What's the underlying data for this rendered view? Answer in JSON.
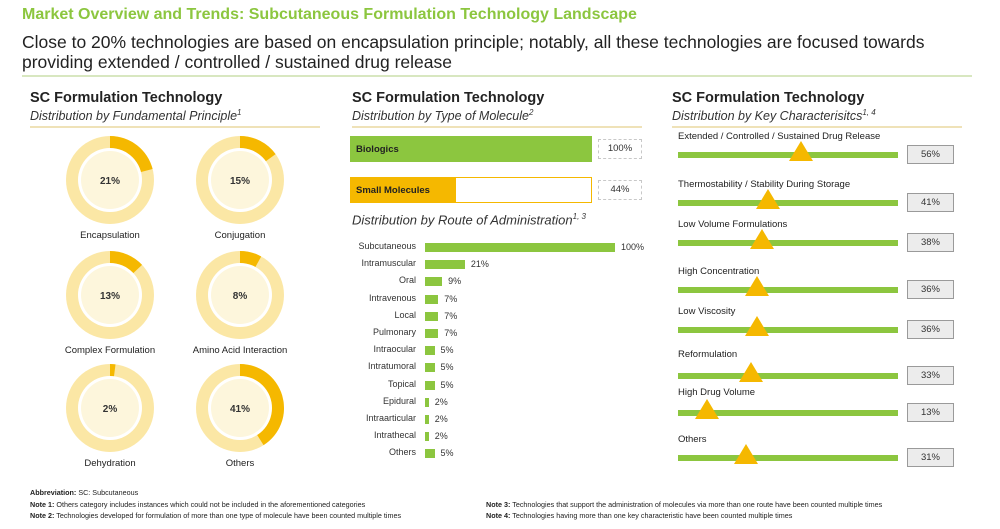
{
  "header": {
    "title": "Market Overview and Trends: Subcutaneous Formulation Technology Landscape",
    "subtitle": "Close to 20% technologies are based on encapsulation principle; notably, all these technologies are focused towards providing extended / controlled / sustained drug release"
  },
  "panels": {
    "principle": {
      "title": "SC Formulation Technology",
      "subtitle": "Distribution by Fundamental Principle",
      "sup": "1"
    },
    "molecule": {
      "title": "SC Formulation Technology",
      "subtitle": "Distribution by Type of Molecule",
      "sup": "2"
    },
    "route": {
      "title": "Distribution by Route of Administration",
      "sup": "1, 3"
    },
    "characteristics": {
      "title": "SC Formulation Technology",
      "subtitle": "Distribution by Key Characterisitcs",
      "sup": "1, 4"
    }
  },
  "colors": {
    "green": "#8cc63f",
    "yellow": "#f5b800",
    "ring": "#fbe7a5",
    "ring_center": "#fdf6dc",
    "header_green": "#8cc63f"
  },
  "chart_data": [
    {
      "type": "pie",
      "id": "principle",
      "title": "SC Formulation Technology",
      "subtitle": "Distribution by Fundamental Principle",
      "slices": [
        {
          "label": "Encapsulation",
          "value": 21,
          "text": "21%"
        },
        {
          "label": "Conjugation",
          "value": 15,
          "text": "15%"
        },
        {
          "label": "Complex Formulation",
          "value": 13,
          "text": "13%"
        },
        {
          "label": "Amino Acid Interaction",
          "value": 8,
          "text": "8%"
        },
        {
          "label": "Dehydration",
          "value": 2,
          "text": "2%"
        },
        {
          "label": "Others",
          "value": 41,
          "text": "41%"
        }
      ]
    },
    {
      "type": "bar",
      "id": "molecule",
      "title": "SC Formulation Technology",
      "subtitle": "Distribution by Type of Molecule",
      "categories": [
        "Biologics",
        "Small Molecules"
      ],
      "values": [
        100,
        44
      ],
      "value_text": [
        "100%",
        "44%"
      ],
      "colors": [
        "#8cc63f",
        "#f5b800"
      ],
      "xlim": [
        0,
        100
      ]
    },
    {
      "type": "bar",
      "id": "route",
      "title": "Distribution by Route of Administration",
      "categories": [
        "Subcutaneous",
        "Intramuscular",
        "Oral",
        "Intravenous",
        "Local",
        "Pulmonary",
        "Intraocular",
        "Intratumoral",
        "Topical",
        "Epidural",
        "Intraarticular",
        "Intrathecal",
        "Others"
      ],
      "values": [
        100,
        21,
        9,
        7,
        7,
        7,
        5,
        5,
        5,
        2,
        2,
        2,
        5
      ],
      "value_text": [
        "100%",
        "21%",
        "9%",
        "7%",
        "7%",
        "7%",
        "5%",
        "5%",
        "5%",
        "2%",
        "2%",
        "2%",
        "5%"
      ],
      "xlim": [
        0,
        100
      ]
    },
    {
      "type": "bar",
      "id": "characteristics",
      "title": "SC Formulation Technology",
      "subtitle": "Distribution by Key Characterisitcs",
      "categories": [
        "Extended / Controlled / Sustained Drug Release",
        "Thermostability / Stability During Storage",
        "Low Volume Formulations",
        "High Concentration",
        "Low Viscosity",
        "Reformulation",
        "High Drug Volume",
        "Others"
      ],
      "values": [
        56,
        41,
        38,
        36,
        36,
        33,
        13,
        31
      ],
      "value_text": [
        "56%",
        "41%",
        "38%",
        "36%",
        "36%",
        "33%",
        "13%",
        "31%"
      ],
      "xlim": [
        0,
        100
      ]
    }
  ],
  "footnotes": {
    "abbrev_label": "Abbreviation:",
    "abbrev_text": " SC: Subcutaneous",
    "note1_label": "Note 1:",
    "note1_text": " Others category includes instances which could not be included in the aforementioned categories",
    "note2_label": "Note 2:",
    "note2_text": " Technologies developed for formulation of more than one type of molecule have been counted multiple times",
    "note3_label": "Note 3:",
    "note3_text": " Technologies that support the administration of molecules via more than one route have been counted multiple times",
    "note4_label": "Note 4:",
    "note4_text": " Technologies having more than one key characteristic have been counted multiple times"
  }
}
